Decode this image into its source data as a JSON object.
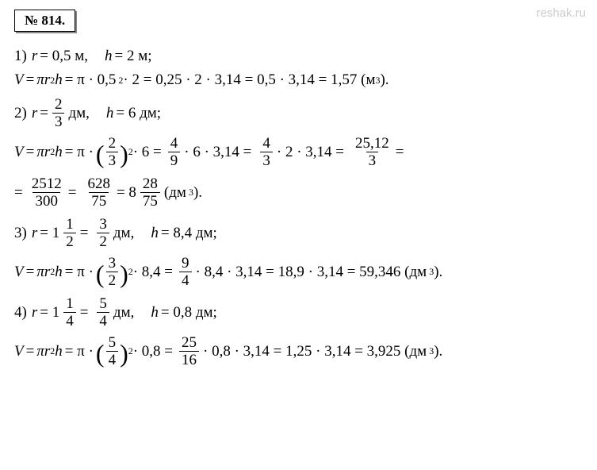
{
  "header": "№ 814.",
  "watermark_link": "reshak.ru",
  "p1": {
    "given": "1)",
    "r_label": "r",
    "r_val": "= 0,5 м,",
    "h_label": "h",
    "h_val": "= 2 м;",
    "V": "V",
    "eq": "=",
    "pi": "π",
    "r2h": "r",
    "sq": "2",
    "h": "h",
    "expr1": "= π · 0,5",
    "expr2": " · 2 = 0,25 · 2 · 3,14 = 0,5 · 3,14 = 1,57 (м",
    "cub": "3",
    "close": ")."
  },
  "p2": {
    "given": "2)",
    "r_label": "r",
    "eq": "=",
    "f1n": "2",
    "f1d": "3",
    "unit1": "дм,",
    "h_label": "h",
    "h_val": "= 6 дм;",
    "V": "V",
    "pi": "π",
    "r": "r",
    "sq": "2",
    "h": "h",
    "mid1": "= π ·",
    "parL": "(",
    "parR": ")",
    "f2n": "2",
    "f2d": "3",
    "mid2": " · 6 =",
    "f3n": "4",
    "f3d": "9",
    "mid3": "· 6 · 3,14 =",
    "f4n": "4",
    "f4d": "3",
    "mid4": "· 2 · 3,14 =",
    "f5n": "25,12",
    "f5d": "3",
    "eq2": "=",
    "cont": "=",
    "f6n": "2512",
    "f6d": "300",
    "f7n": "628",
    "f7d": "75",
    "mixed_int": "= 8",
    "f8n": "28",
    "f8d": "75",
    "unit2": " (дм",
    "cub": "3",
    "close": ")."
  },
  "p3": {
    "given": "3)",
    "r_label": "r",
    "eq": "= 1",
    "f1n": "1",
    "f1d": "2",
    "eq2": "=",
    "f2n": "3",
    "f2d": "2",
    "unit1": "дм,",
    "h_label": "h",
    "h_val": "= 8,4 дм;",
    "V": "V",
    "pi": "π",
    "r": "r",
    "sq": "2",
    "h": "h",
    "mid1": "= π ·",
    "parL": "(",
    "parR": ")",
    "f3n": "3",
    "f3d": "2",
    "mid2": " · 8,4 =",
    "f4n": "9",
    "f4d": "4",
    "rest": "· 8,4 · 3,14 = 18,9 · 3,14 = 59,346 (дм",
    "cub": "3",
    "close": ")."
  },
  "p4": {
    "given": "4)",
    "r_label": "r",
    "eq": "= 1",
    "f1n": "1",
    "f1d": "4",
    "eq2": "=",
    "f2n": "5",
    "f2d": "4",
    "unit1": "дм,",
    "h_label": "h",
    "h_val": "= 0,8 дм;",
    "V": "V",
    "pi": "π",
    "r": "r",
    "sq": "2",
    "h": "h",
    "mid1": "= π ·",
    "parL": "(",
    "parR": ")",
    "f3n": "5",
    "f3d": "4",
    "mid2": " · 0,8 =",
    "f4n": "25",
    "f4d": "16",
    "rest": "· 0,8 · 3,14 = 1,25 · 3,14 = 3,925 (дм",
    "cub": "3",
    "close": ")."
  }
}
